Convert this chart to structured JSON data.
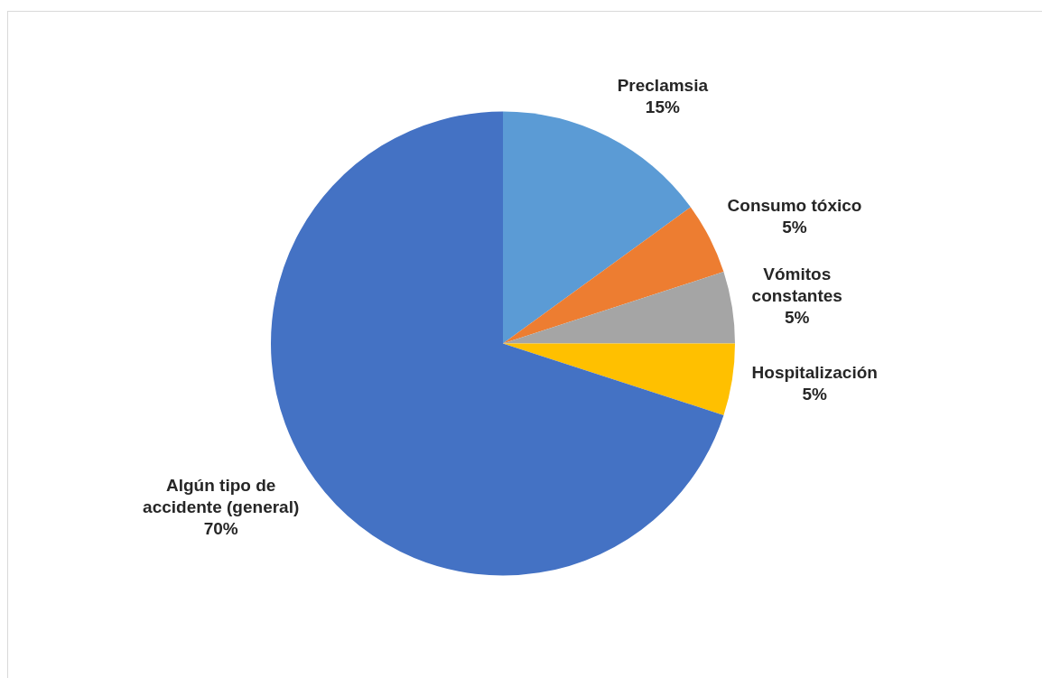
{
  "chart_data": {
    "type": "pie",
    "categories": [
      "Preclamsia",
      "Consumo tóxico",
      "Vómitos constantes",
      "Hospitalización",
      "Algún tipo de accidente (general)"
    ],
    "values": [
      15,
      5,
      5,
      5,
      70
    ],
    "value_labels": [
      "15%",
      "5%",
      "5%",
      "5%",
      "70%"
    ],
    "colors": [
      "#5b9bd5",
      "#ed7d31",
      "#a5a5a5",
      "#ffc000",
      "#4472c4"
    ]
  }
}
